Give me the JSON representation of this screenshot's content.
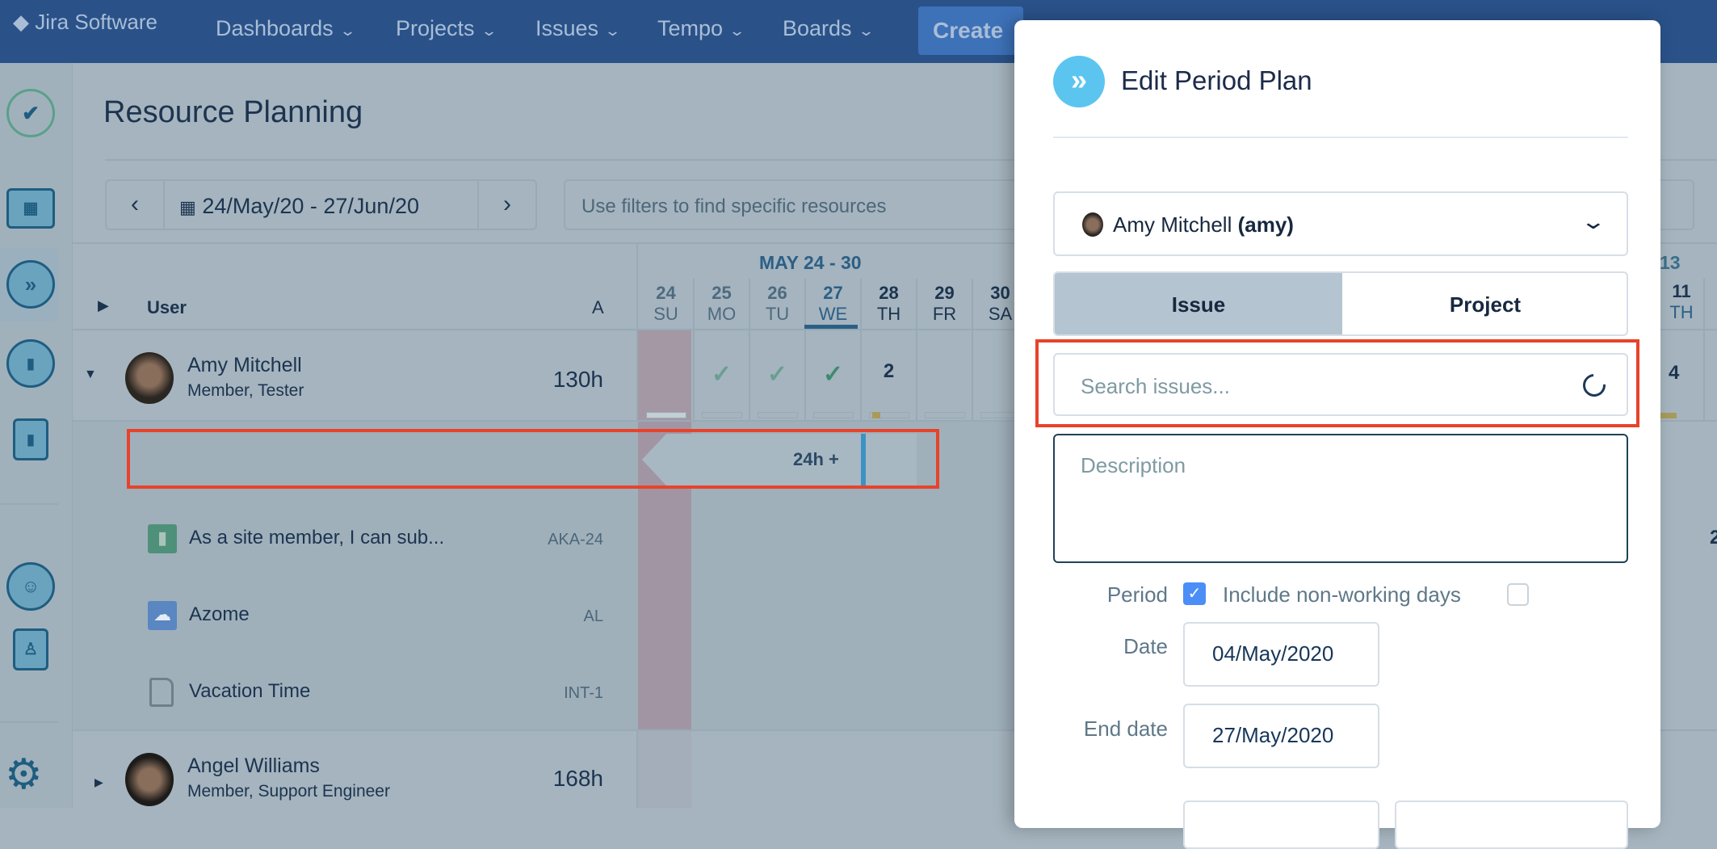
{
  "topbar": {
    "logo": "Jira Software",
    "nav": [
      "Dashboards",
      "Projects",
      "Issues",
      "Tempo",
      "Boards"
    ],
    "create": "Create"
  },
  "sidebar": {
    "icons": [
      "tempo-logo-icon",
      "calendar-icon",
      "planner-icon",
      "reports-icon",
      "bar-chart-icon",
      "teams-icon",
      "user-icon",
      "gear-icon"
    ]
  },
  "page": {
    "title": "Resource Planning",
    "date_range": "24/May/20 - 27/Jun/20",
    "filter_placeholder": "Use filters to find specific resources"
  },
  "grid": {
    "user_header": "User",
    "a_header": "A",
    "week_label": "MAY 24 - 30",
    "week_label_right": "13",
    "days": [
      {
        "n": "24",
        "d": "SU"
      },
      {
        "n": "25",
        "d": "MO"
      },
      {
        "n": "26",
        "d": "TU"
      },
      {
        "n": "27",
        "d": "WE"
      },
      {
        "n": "28",
        "d": "TH"
      },
      {
        "n": "29",
        "d": "FR"
      },
      {
        "n": "30",
        "d": "SA"
      }
    ],
    "right_day": {
      "n": "11",
      "d": "TH"
    },
    "users": [
      {
        "name": "Amy Mitchell",
        "role": "Member, Tester",
        "hours": "130h",
        "cells": [
          "",
          "✓",
          "✓",
          "✓",
          "2",
          "",
          ""
        ],
        "right_cell": "4"
      },
      {
        "name": "Angel Williams",
        "role": "Member, Support Engineer",
        "hours": "168h"
      }
    ],
    "plan_bar": "24h +",
    "issues": [
      {
        "title": "As a site member, I can sub...",
        "key": "AKA-24",
        "icon": "story-icon"
      },
      {
        "title": "Azome",
        "key": "AL",
        "icon": "project-cloud-icon"
      },
      {
        "title": "Vacation Time",
        "key": "INT-1",
        "icon": "page-icon"
      }
    ],
    "right_issue_value": "2"
  },
  "modal": {
    "title": "Edit Period Plan",
    "assignee": "Amy Mitchell",
    "assignee_user": "(amy)",
    "tabs": [
      "Issue",
      "Project"
    ],
    "active_tab": "Issue",
    "search_placeholder": "Search issues...",
    "description_placeholder": "Description",
    "period_label": "Period",
    "period_checked": true,
    "nonworking_label": "Include non-working days",
    "nonworking_checked": false,
    "date_label": "Date",
    "date_value": "04/May/2020",
    "end_label": "End date",
    "end_value": "27/May/2020"
  },
  "colors": {
    "topbar": "#2a5289",
    "accent": "#5bc5ef",
    "highlight": "#e8432a",
    "checkbox": "#4c8ef7"
  }
}
